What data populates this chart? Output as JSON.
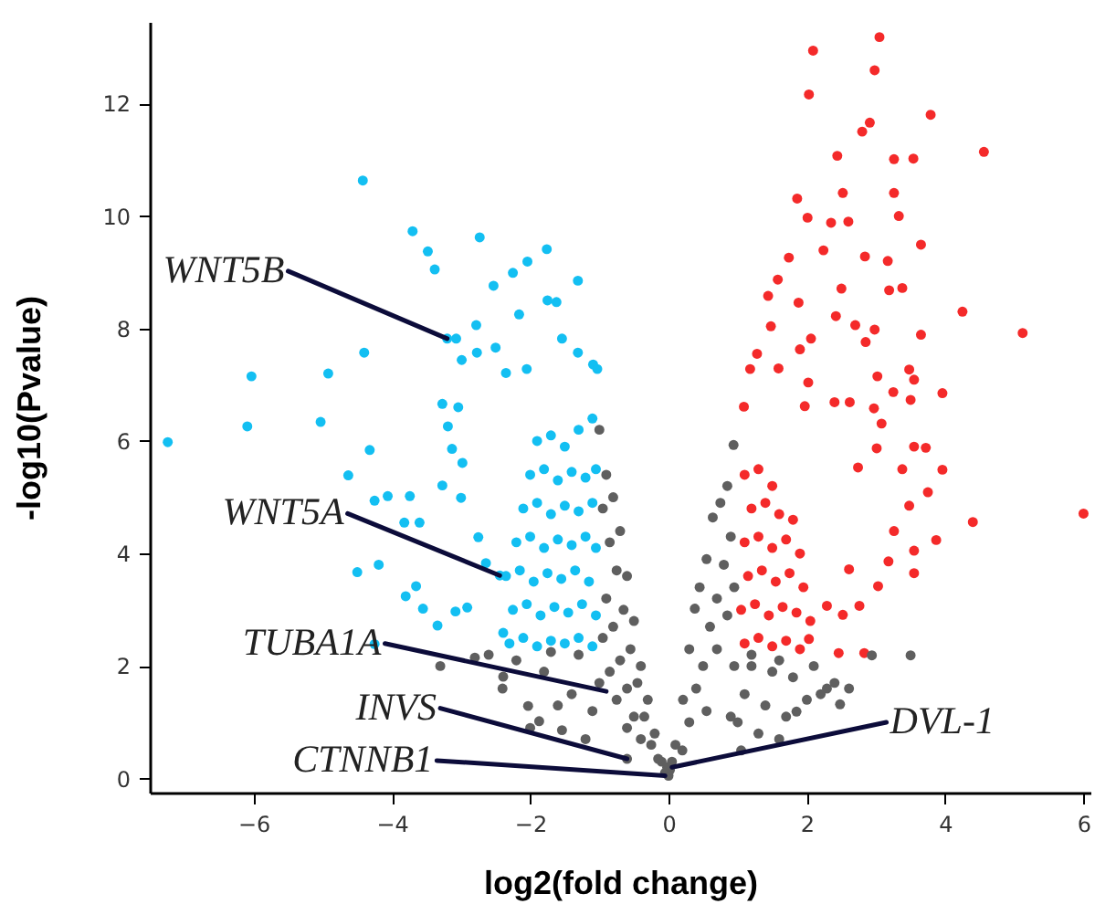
{
  "chart_data": {
    "type": "scatter",
    "xlabel": "log2(fold change)",
    "ylabel": "-log10(Pvalue)",
    "xlim": [
      -7.5,
      6.1
    ],
    "ylim": [
      -0.25,
      13.45
    ],
    "xticks": [
      -6,
      -4,
      -2,
      0,
      2,
      4,
      6
    ],
    "yticks": [
      0,
      2,
      4,
      6,
      8,
      10,
      12
    ],
    "grid": false,
    "marker": "circle",
    "series": [
      {
        "color": "#13bff2",
        "x": [
          -4.42,
          -3.7,
          -3.48,
          -3.38,
          -2.73,
          -1.76,
          -2.04,
          -2.25,
          -2.53,
          -6.03,
          -4.92,
          -4.4,
          -7.24,
          -6.09,
          -5.03,
          -4.32,
          -4.63,
          -4.25,
          -4.06,
          -3.74,
          -4.5,
          -4.19,
          -3.82,
          -3.6,
          -3.8,
          -3.65,
          -3.55,
          -3.34,
          -4.25,
          -3.08,
          -2.91,
          -3.2,
          -3.07,
          -2.99,
          -2.78,
          -2.77,
          -2.5,
          -3.27,
          -3.19,
          -3.04,
          -3.13,
          -2.98,
          -3.27,
          -3.0,
          -2.75,
          -2.44,
          -2.64,
          -2.39,
          -2.16,
          -2.05,
          -2.35,
          -1.75,
          -1.31,
          -1.62,
          -1.54,
          -1.31,
          -1.09,
          -1.03,
          -2.3,
          -2.1,
          -1.9,
          -1.7,
          -1.5,
          -1.3,
          -1.1,
          -2.25,
          -2.05,
          -1.85,
          -1.65,
          -1.45,
          -1.25,
          -1.05,
          -2.35,
          -2.15,
          -1.95,
          -1.75,
          -1.55,
          -1.35,
          -1.15,
          -2.2,
          -2.0,
          -1.8,
          -1.6,
          -1.4,
          -1.2,
          -1.05,
          -2.1,
          -1.9,
          -1.7,
          -1.5,
          -1.3,
          -1.1,
          -2.0,
          -1.8,
          -1.6,
          -1.4,
          -1.2,
          -1.05,
          -1.9,
          -1.7,
          -1.5,
          -1.3,
          -1.1
        ],
        "values": [
          10.63,
          9.73,
          9.37,
          9.05,
          9.62,
          9.41,
          9.19,
          8.99,
          8.76,
          7.15,
          7.2,
          7.57,
          5.98,
          6.26,
          6.34,
          5.84,
          5.39,
          4.94,
          5.02,
          5.02,
          3.67,
          3.8,
          4.55,
          4.55,
          3.24,
          3.42,
          3.02,
          2.72,
          2.39,
          2.97,
          3.04,
          7.82,
          7.82,
          7.44,
          8.06,
          7.57,
          7.66,
          6.66,
          6.26,
          6.6,
          5.86,
          5.61,
          5.21,
          4.99,
          4.29,
          3.61,
          3.83,
          2.59,
          8.25,
          7.28,
          7.21,
          8.5,
          8.85,
          8.47,
          7.82,
          7.57,
          7.36,
          7.28,
          2.4,
          2.5,
          2.35,
          2.45,
          2.4,
          2.5,
          2.35,
          3.0,
          3.1,
          2.9,
          3.05,
          2.95,
          3.1,
          2.9,
          3.6,
          3.7,
          3.5,
          3.65,
          3.55,
          3.7,
          3.5,
          4.2,
          4.3,
          4.1,
          4.25,
          4.15,
          4.3,
          4.1,
          4.8,
          4.9,
          4.7,
          4.85,
          4.75,
          4.9,
          5.4,
          5.5,
          5.3,
          5.45,
          5.35,
          5.5,
          6.0,
          6.1,
          5.9,
          6.2,
          6.4
        ]
      },
      {
        "color": "#f42a2a",
        "x": [
          3.05,
          2.09,
          2.98,
          2.03,
          3.79,
          2.91,
          2.8,
          4.56,
          2.44,
          3.26,
          3.54,
          2.52,
          1.86,
          3.26,
          3.33,
          2.01,
          2.35,
          2.6,
          3.65,
          2.24,
          1.74,
          2.84,
          3.17,
          1.58,
          2.5,
          3.19,
          3.38,
          1.44,
          1.88,
          4.25,
          2.42,
          2.7,
          2.98,
          5.12,
          3.65,
          1.48,
          2.06,
          1.28,
          1.9,
          2.85,
          1.59,
          1.18,
          3.48,
          3.02,
          3.55,
          3.96,
          3.25,
          2.02,
          3.5,
          2.4,
          2.62,
          2.97,
          1.09,
          1.97,
          3.08,
          3.55,
          3.72,
          3.01,
          3.38,
          3.96,
          2.74,
          3.75,
          3.48,
          4.4,
          3.87,
          6.0,
          3.26,
          3.55,
          3.55,
          3.18,
          3.03,
          2.61,
          2.76,
          2.52,
          2.29,
          2.46,
          2.83,
          2.03,
          1.1,
          1.3,
          1.5,
          1.7,
          1.9,
          1.05,
          1.25,
          1.45,
          1.65,
          1.85,
          2.05,
          1.15,
          1.35,
          1.55,
          1.75,
          1.95,
          1.1,
          1.3,
          1.5,
          1.7,
          1.9,
          1.2,
          1.4,
          1.6,
          1.8,
          1.1,
          1.3,
          1.5
        ],
        "values": [
          13.18,
          12.94,
          12.59,
          12.16,
          11.8,
          11.66,
          11.5,
          11.14,
          11.07,
          11.01,
          11.02,
          10.41,
          10.31,
          10.41,
          10.0,
          9.97,
          9.88,
          9.9,
          9.49,
          9.39,
          9.26,
          9.28,
          9.2,
          8.87,
          8.71,
          8.68,
          8.72,
          8.58,
          8.46,
          8.3,
          8.22,
          8.06,
          7.98,
          7.92,
          7.89,
          8.04,
          7.82,
          7.55,
          7.63,
          7.76,
          7.29,
          7.28,
          7.27,
          7.15,
          7.09,
          6.85,
          6.87,
          7.04,
          6.73,
          6.69,
          6.69,
          6.58,
          6.61,
          6.62,
          6.31,
          5.9,
          5.88,
          5.87,
          5.5,
          5.49,
          5.53,
          5.09,
          4.85,
          4.56,
          4.24,
          4.71,
          4.4,
          4.05,
          3.65,
          3.86,
          3.42,
          3.72,
          3.07,
          2.91,
          3.07,
          2.23,
          2.23,
          2.48,
          2.4,
          2.5,
          2.35,
          2.45,
          2.3,
          3.0,
          3.1,
          2.9,
          3.05,
          2.95,
          2.8,
          3.6,
          3.7,
          3.5,
          3.65,
          3.4,
          4.2,
          4.3,
          4.1,
          4.25,
          4.0,
          4.8,
          4.9,
          4.7,
          4.6,
          5.4,
          5.5,
          5.2
        ]
      },
      {
        "color": "#5f5f5f",
        "x": [
          -1.0,
          -0.9,
          -0.8,
          -0.7,
          -0.6,
          -0.5,
          -0.4,
          -0.3,
          -0.2,
          -0.1,
          -0.95,
          -0.85,
          -0.75,
          -0.65,
          -0.55,
          -0.45,
          -0.35,
          -0.25,
          -0.15,
          -0.05,
          -0.9,
          -0.8,
          -0.7,
          -0.6,
          -0.5,
          -0.4,
          -0.95,
          -0.85,
          -0.75,
          -0.6,
          -2.39,
          -2.03,
          -1.87,
          -1.54,
          -2.6,
          -2.2,
          -1.8,
          -1.4,
          -1.1,
          -2.4,
          -2.0,
          -1.6,
          -1.2,
          -1.7,
          -1.3,
          -1.0,
          -2.8,
          -3.3,
          0.94,
          0.85,
          0.75,
          0.64,
          0.55,
          0.45,
          0.38,
          0.3,
          0.21,
          0.1,
          0.05,
          0.9,
          0.8,
          0.7,
          0.6,
          0.5,
          0.4,
          0.3,
          0.2,
          0.95,
          0.85,
          0.7,
          0.55,
          0.95,
          1.2,
          1.5,
          1.8,
          2.1,
          2.4,
          2.94,
          3.5,
          2.48,
          2.61,
          2.29,
          1.85,
          1.1,
          1.4,
          1.7,
          2.0,
          1.3,
          1.6,
          1.0,
          0.0,
          0.02,
          -0.02,
          1.2,
          1.6,
          2.2,
          0.9,
          1.05,
          -0.6
        ],
        "values": [
          6.2,
          5.4,
          5.0,
          4.4,
          3.6,
          2.8,
          2.0,
          1.4,
          0.8,
          0.3,
          4.8,
          4.2,
          3.7,
          3.0,
          2.3,
          1.7,
          1.1,
          0.6,
          0.35,
          0.1,
          3.2,
          2.7,
          2.1,
          1.6,
          1.1,
          0.7,
          2.5,
          1.9,
          1.4,
          0.9,
          1.81,
          1.29,
          1.02,
          0.86,
          2.2,
          2.1,
          1.9,
          1.5,
          1.2,
          1.6,
          0.9,
          1.3,
          0.7,
          2.25,
          2.2,
          1.7,
          2.15,
          2.0,
          5.93,
          5.2,
          4.9,
          4.64,
          3.9,
          3.4,
          3.02,
          2.3,
          1.4,
          0.6,
          0.3,
          4.3,
          3.8,
          3.2,
          2.7,
          2.0,
          1.6,
          1.0,
          0.5,
          3.4,
          2.9,
          2.3,
          1.2,
          2.0,
          2.0,
          1.9,
          1.8,
          2.0,
          1.7,
          2.19,
          2.19,
          1.32,
          1.6,
          1.6,
          1.19,
          1.5,
          1.3,
          1.1,
          1.4,
          0.8,
          0.7,
          1.0,
          0.05,
          0.15,
          0.2,
          2.2,
          2.1,
          1.5,
          1.1,
          0.5,
          0.35
        ]
      }
    ],
    "annotations": [
      {
        "text": "WNT5B",
        "x": -3.2,
        "y": 7.82
      },
      {
        "text": "WNT5A",
        "x": -2.44,
        "y": 3.61
      },
      {
        "text": "TUBA1A",
        "x": -0.9,
        "y": 1.55
      },
      {
        "text": "INVS",
        "x": -0.6,
        "y": 0.35
      },
      {
        "text": "CTNNB1",
        "x": -0.05,
        "y": 0.05
      },
      {
        "text": "DVL-1",
        "x": 0.05,
        "y": 0.2
      }
    ]
  }
}
